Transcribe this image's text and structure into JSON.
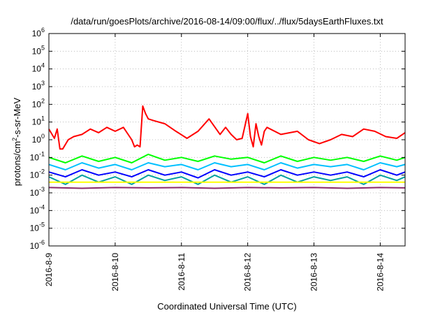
{
  "chart_data": {
    "type": "line",
    "title": "/data/run/goesPlots/archive/2016-08-14/09:00/flux/../flux/5daysEarthFluxes.txt",
    "xlabel": "Coordinated Universal Time (UTC)",
    "ylabel": "protons/cm²-s-sr-MeV",
    "x_type": "time",
    "xlim": [
      "2016-08-09",
      "2016-08-14 09:00"
    ],
    "x_ticks": [
      "2016-8-9",
      "2016-8-10",
      "2016-8-11",
      "2016-8-12",
      "2016-8-13",
      "2016-8-14"
    ],
    "y_scale": "log",
    "ylim": [
      1e-06,
      1000000.0
    ],
    "y_ticks": [
      {
        "base": "10",
        "exp": "-6"
      },
      {
        "base": "10",
        "exp": "-5"
      },
      {
        "base": "10",
        "exp": "-4"
      },
      {
        "base": "10",
        "exp": "-3"
      },
      {
        "base": "10",
        "exp": "-2"
      },
      {
        "base": "10",
        "exp": "-1"
      },
      {
        "base": "10",
        "exp": "0"
      },
      {
        "base": "10",
        "exp": "1"
      },
      {
        "base": "10",
        "exp": "2"
      },
      {
        "base": "10",
        "exp": "3"
      },
      {
        "base": "10",
        "exp": "4"
      },
      {
        "base": "10",
        "exp": "5"
      },
      {
        "base": "10",
        "exp": "6"
      }
    ],
    "grid": true,
    "series": [
      {
        "color": "#ff0000",
        "x": [
          "2016-08-09 00:00",
          "2016-08-09 02:00",
          "2016-08-09 03:00",
          "2016-08-09 04:00",
          "2016-08-09 05:00",
          "2016-08-09 07:00",
          "2016-08-09 09:00",
          "2016-08-09 12:00",
          "2016-08-09 15:00",
          "2016-08-09 18:00",
          "2016-08-09 21:00",
          "2016-08-10 00:00",
          "2016-08-10 03:00",
          "2016-08-10 06:00",
          "2016-08-10 07:00",
          "2016-08-10 08:00",
          "2016-08-10 09:00",
          "2016-08-10 10:00",
          "2016-08-10 11:00",
          "2016-08-10 12:00",
          "2016-08-10 14:00",
          "2016-08-10 18:00",
          "2016-08-10 22:00",
          "2016-08-11 02:00",
          "2016-08-11 06:00",
          "2016-08-11 10:00",
          "2016-08-11 14:00",
          "2016-08-11 16:00",
          "2016-08-11 18:00",
          "2016-08-11 20:00",
          "2016-08-11 22:00",
          "2016-08-12 00:00",
          "2016-08-12 01:00",
          "2016-08-12 02:00",
          "2016-08-12 03:00",
          "2016-08-12 04:00",
          "2016-08-12 05:00",
          "2016-08-12 06:00",
          "2016-08-12 07:00",
          "2016-08-12 12:00",
          "2016-08-12 18:00",
          "2016-08-12 22:00",
          "2016-08-13 02:00",
          "2016-08-13 06:00",
          "2016-08-13 10:00",
          "2016-08-13 14:00",
          "2016-08-13 18:00",
          "2016-08-13 22:00",
          "2016-08-14 02:00",
          "2016-08-14 06:00",
          "2016-08-14 09:00"
        ],
        "values": [
          4.0,
          1.2,
          4.0,
          0.3,
          0.3,
          1.0,
          1.5,
          2.0,
          4.0,
          2.5,
          5.0,
          3.0,
          5.0,
          1.0,
          0.4,
          0.5,
          0.4,
          80,
          30,
          15,
          12,
          8,
          3,
          1.2,
          3,
          15,
          2,
          5,
          2,
          1.0,
          1.2,
          30,
          1.5,
          0.4,
          8,
          1.5,
          0.5,
          3,
          5,
          2,
          3,
          1.0,
          0.6,
          1.0,
          2,
          1.5,
          4,
          3,
          1.5,
          1.2,
          2.5
        ]
      },
      {
        "color": "#00ff00",
        "x": [
          "2016-08-09 00:00",
          "2016-08-09 06:00",
          "2016-08-09 12:00",
          "2016-08-09 18:00",
          "2016-08-10 00:00",
          "2016-08-10 06:00",
          "2016-08-10 12:00",
          "2016-08-10 18:00",
          "2016-08-11 00:00",
          "2016-08-11 06:00",
          "2016-08-11 12:00",
          "2016-08-11 18:00",
          "2016-08-12 00:00",
          "2016-08-12 06:00",
          "2016-08-12 12:00",
          "2016-08-12 18:00",
          "2016-08-13 00:00",
          "2016-08-13 06:00",
          "2016-08-13 12:00",
          "2016-08-13 18:00",
          "2016-08-14 00:00",
          "2016-08-14 06:00",
          "2016-08-14 09:00"
        ],
        "values": [
          0.1,
          0.05,
          0.12,
          0.06,
          0.1,
          0.05,
          0.15,
          0.07,
          0.1,
          0.06,
          0.12,
          0.08,
          0.1,
          0.05,
          0.12,
          0.06,
          0.1,
          0.07,
          0.1,
          0.06,
          0.12,
          0.07,
          0.1
        ]
      },
      {
        "color": "#00c0ff",
        "x": [
          "2016-08-09 00:00",
          "2016-08-09 06:00",
          "2016-08-09 12:00",
          "2016-08-09 18:00",
          "2016-08-10 00:00",
          "2016-08-10 06:00",
          "2016-08-10 12:00",
          "2016-08-10 18:00",
          "2016-08-11 00:00",
          "2016-08-11 06:00",
          "2016-08-11 12:00",
          "2016-08-11 18:00",
          "2016-08-12 00:00",
          "2016-08-12 06:00",
          "2016-08-12 12:00",
          "2016-08-12 18:00",
          "2016-08-13 00:00",
          "2016-08-13 06:00",
          "2016-08-13 12:00",
          "2016-08-13 18:00",
          "2016-08-14 00:00",
          "2016-08-14 06:00",
          "2016-08-14 09:00"
        ],
        "values": [
          0.04,
          0.02,
          0.05,
          0.025,
          0.04,
          0.02,
          0.05,
          0.03,
          0.04,
          0.02,
          0.05,
          0.03,
          0.04,
          0.02,
          0.05,
          0.025,
          0.04,
          0.03,
          0.04,
          0.02,
          0.05,
          0.03,
          0.04
        ]
      },
      {
        "color": "#0000ff",
        "x": [
          "2016-08-09 00:00",
          "2016-08-09 06:00",
          "2016-08-09 12:00",
          "2016-08-09 18:00",
          "2016-08-10 00:00",
          "2016-08-10 06:00",
          "2016-08-10 12:00",
          "2016-08-10 18:00",
          "2016-08-11 00:00",
          "2016-08-11 06:00",
          "2016-08-11 12:00",
          "2016-08-11 18:00",
          "2016-08-12 00:00",
          "2016-08-12 06:00",
          "2016-08-12 12:00",
          "2016-08-12 18:00",
          "2016-08-13 00:00",
          "2016-08-13 06:00",
          "2016-08-13 12:00",
          "2016-08-13 18:00",
          "2016-08-14 00:00",
          "2016-08-14 06:00",
          "2016-08-14 09:00"
        ],
        "values": [
          0.015,
          0.008,
          0.02,
          0.01,
          0.015,
          0.008,
          0.02,
          0.01,
          0.015,
          0.007,
          0.02,
          0.01,
          0.015,
          0.008,
          0.02,
          0.01,
          0.015,
          0.01,
          0.015,
          0.008,
          0.02,
          0.01,
          0.015
        ]
      },
      {
        "color": "#00a0a0",
        "x": [
          "2016-08-09 00:00",
          "2016-08-09 06:00",
          "2016-08-09 12:00",
          "2016-08-09 18:00",
          "2016-08-10 00:00",
          "2016-08-10 06:00",
          "2016-08-10 12:00",
          "2016-08-10 18:00",
          "2016-08-11 00:00",
          "2016-08-11 06:00",
          "2016-08-11 12:00",
          "2016-08-11 18:00",
          "2016-08-12 00:00",
          "2016-08-12 06:00",
          "2016-08-12 12:00",
          "2016-08-12 18:00",
          "2016-08-13 00:00",
          "2016-08-13 06:00",
          "2016-08-13 12:00",
          "2016-08-13 18:00",
          "2016-08-14 00:00",
          "2016-08-14 06:00",
          "2016-08-14 09:00"
        ],
        "values": [
          0.008,
          0.003,
          0.01,
          0.004,
          0.008,
          0.003,
          0.01,
          0.005,
          0.008,
          0.003,
          0.01,
          0.004,
          0.008,
          0.003,
          0.01,
          0.004,
          0.008,
          0.005,
          0.008,
          0.003,
          0.01,
          0.005,
          0.008
        ]
      },
      {
        "color": "#ffff00",
        "x": [
          "2016-08-09 00:00",
          "2016-08-10 00:00",
          "2016-08-11 00:00",
          "2016-08-12 00:00",
          "2016-08-13 00:00",
          "2016-08-14 00:00",
          "2016-08-14 09:00"
        ],
        "values": [
          0.004,
          0.004,
          0.004,
          0.004,
          0.004,
          0.004,
          0.004
        ]
      },
      {
        "color": "#8b2a6b",
        "x": [
          "2016-08-09 00:00",
          "2016-08-09 12:00",
          "2016-08-10 00:00",
          "2016-08-10 12:00",
          "2016-08-11 00:00",
          "2016-08-11 12:00",
          "2016-08-12 00:00",
          "2016-08-12 12:00",
          "2016-08-13 00:00",
          "2016-08-13 12:00",
          "2016-08-14 00:00",
          "2016-08-14 09:00"
        ],
        "values": [
          0.002,
          0.0018,
          0.002,
          0.0019,
          0.002,
          0.0018,
          0.002,
          0.0019,
          0.002,
          0.0018,
          0.002,
          0.0019
        ]
      }
    ]
  }
}
